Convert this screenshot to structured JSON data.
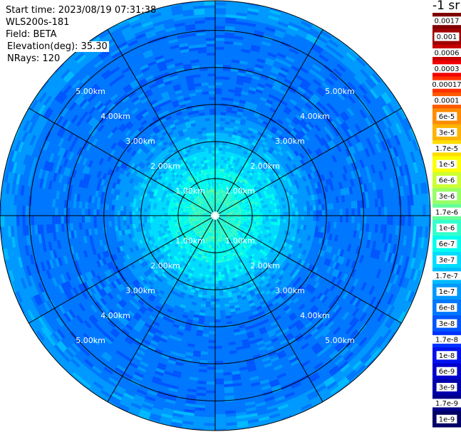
{
  "info": {
    "start_time": "Start time: 2023/08/19 07:31:38",
    "instrument": "WLS200s-181",
    "field": "Field: BETA",
    "elevation": "Elevation(deg): 35.30",
    "nrays": "NRays: 120"
  },
  "colorbar": {
    "unit": "-1 sr",
    "levels": [
      {
        "label": "0.0017",
        "color": "#800000"
      },
      {
        "label": "0.001",
        "color": "#a00000"
      },
      {
        "label": "0.0006",
        "color": "#c80000"
      },
      {
        "label": "0.0003",
        "color": "#f00000"
      },
      {
        "label": "0.00017",
        "color": "#ff3000"
      },
      {
        "label": "0.0001",
        "color": "#ff5a00"
      },
      {
        "label": "6e-5",
        "color": "#ff8c00"
      },
      {
        "label": "3e-5",
        "color": "#ffb400"
      },
      {
        "label": "1.7e-5",
        "color": "#ffdc00"
      },
      {
        "label": "1e-5",
        "color": "#ffff00"
      },
      {
        "label": "6e-6",
        "color": "#ccff33"
      },
      {
        "label": "3e-6",
        "color": "#99ff66"
      },
      {
        "label": "1.7e-6",
        "color": "#66ff99"
      },
      {
        "label": "1e-6",
        "color": "#33ffcc"
      },
      {
        "label": "6e-7",
        "color": "#00ffee"
      },
      {
        "label": "3e-7",
        "color": "#00ddff"
      },
      {
        "label": "1.7e-7",
        "color": "#00bbff"
      },
      {
        "label": "1e-7",
        "color": "#0099ff"
      },
      {
        "label": "6e-8",
        "color": "#0077ff"
      },
      {
        "label": "3e-8",
        "color": "#0055ff"
      },
      {
        "label": "1.7e-8",
        "color": "#0033ff"
      },
      {
        "label": "1e-8",
        "color": "#0011ee"
      },
      {
        "label": "6e-9",
        "color": "#0000cc"
      },
      {
        "label": "3e-9",
        "color": "#0000aa"
      },
      {
        "label": "1.7e-9",
        "color": "#000088"
      },
      {
        "label": "1e-9",
        "color": "#000066"
      }
    ]
  },
  "chart_data": {
    "type": "heatmap",
    "projection": "polar-ppi",
    "field": "BETA",
    "elevation_deg": 35.3,
    "nrays": 120,
    "range_rings_km": [
      1.0,
      2.0,
      3.0,
      4.0,
      5.0
    ],
    "range_ring_labels": [
      "1.00km",
      "2.00km",
      "3.00km",
      "4.00km",
      "5.00km"
    ],
    "max_range_km": 5.8,
    "spoke_angles_deg": [
      0,
      30,
      60,
      90,
      120,
      150,
      180,
      210,
      240,
      270,
      300,
      330
    ],
    "range_profile": [
      {
        "range_km": 0.0,
        "beta": 1e-06
      },
      {
        "range_km": 0.5,
        "beta": 1e-06
      },
      {
        "range_km": 1.0,
        "beta": 6e-07
      },
      {
        "range_km": 1.5,
        "beta": 3e-07
      },
      {
        "range_km": 2.0,
        "beta": 1.7e-07
      },
      {
        "range_km": 2.5,
        "beta": 1e-07
      },
      {
        "range_km": 3.0,
        "beta": 6e-08
      },
      {
        "range_km": 4.0,
        "beta": 6e-08
      },
      {
        "range_km": 5.0,
        "beta": 6e-08
      },
      {
        "range_km": 5.8,
        "beta": 1e-07
      }
    ]
  }
}
